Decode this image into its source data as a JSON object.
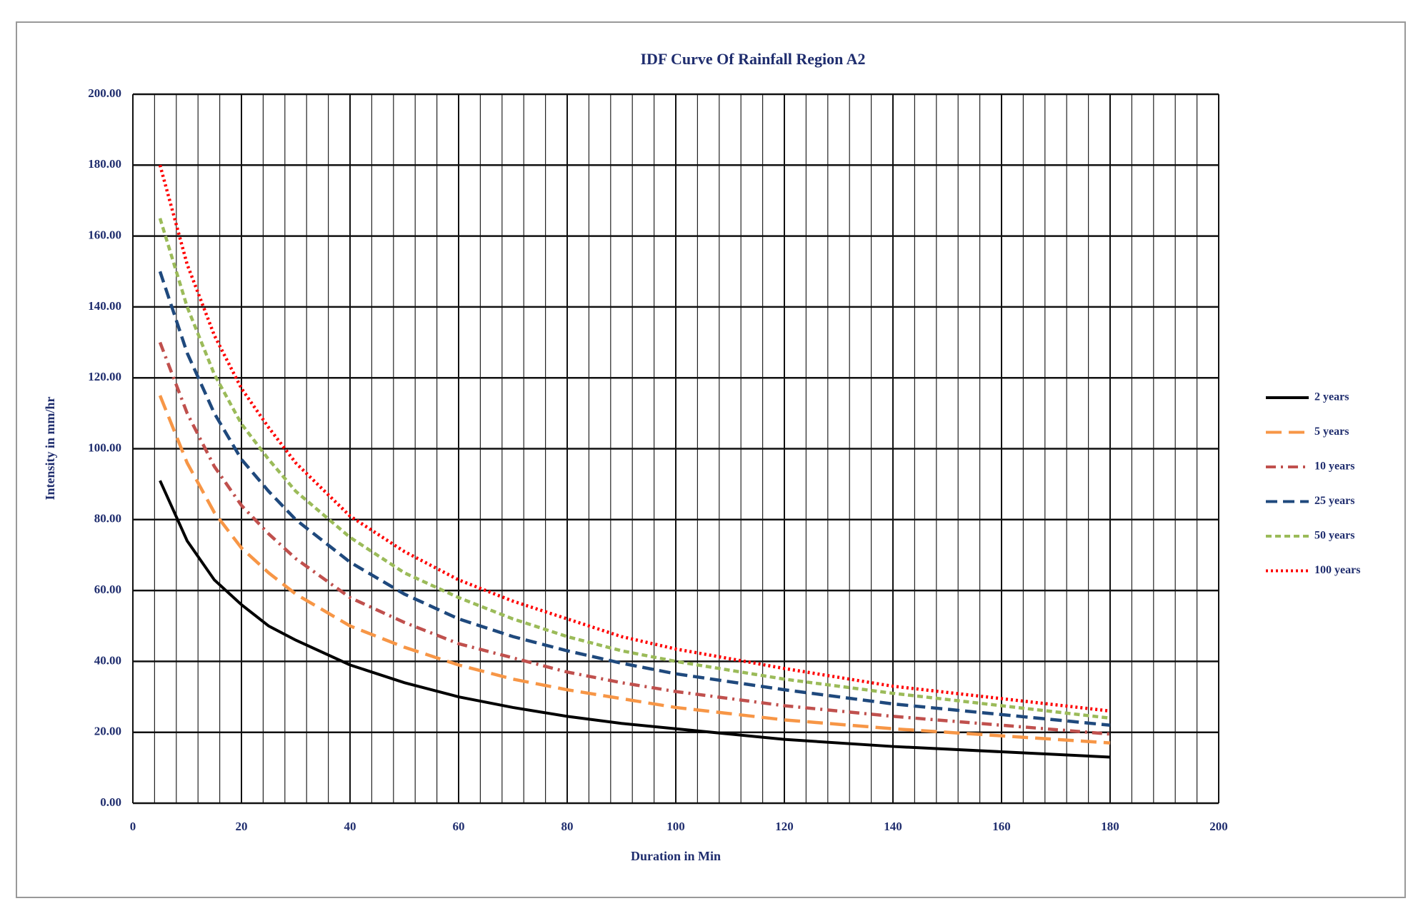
{
  "chart_data": {
    "type": "line",
    "title": "IDF Curve Of Rainfall Region A2",
    "x_label": "Duration in Min",
    "y_label": "Intensity in mm/hr",
    "x": [
      5,
      10,
      15,
      20,
      25,
      30,
      40,
      50,
      60,
      70,
      80,
      90,
      100,
      120,
      140,
      160,
      180
    ],
    "series": [
      {
        "name": "2 years",
        "color": "#000000",
        "dash": "solid",
        "values": [
          91,
          74,
          63,
          56,
          50,
          46,
          39,
          34,
          30,
          27,
          24.5,
          22.5,
          21,
          18,
          16,
          14.5,
          13
        ]
      },
      {
        "name": "5 years",
        "color": "#f79646",
        "dash": "longdash",
        "values": [
          115,
          96,
          82,
          72,
          65,
          59,
          50,
          44,
          39,
          35,
          32,
          29.5,
          27,
          23.5,
          21,
          19,
          17
        ]
      },
      {
        "name": "10 years",
        "color": "#c0504d",
        "dash": "dashdot",
        "values": [
          130,
          110,
          95,
          84,
          76,
          69,
          58,
          51,
          45,
          41,
          37,
          34,
          31.5,
          27.5,
          24.5,
          22,
          19.5
        ]
      },
      {
        "name": "25 years",
        "color": "#1f497d",
        "dash": "dash",
        "values": [
          150,
          127,
          110,
          97,
          88,
          80,
          68,
          59,
          52,
          47,
          43,
          39.5,
          36.5,
          32,
          28,
          25,
          22
        ]
      },
      {
        "name": "50 years",
        "color": "#9bbb59",
        "dash": "shortdash",
        "values": [
          165,
          140,
          121,
          107,
          97,
          88,
          75,
          65,
          58,
          52,
          47,
          43,
          40,
          35,
          31,
          27.5,
          24
        ]
      },
      {
        "name": "100 years",
        "color": "#ff0000",
        "dash": "dot",
        "values": [
          180,
          152,
          132,
          117,
          106,
          96,
          81,
          71,
          63,
          57,
          52,
          47,
          43.5,
          38,
          33,
          29.5,
          26
        ]
      }
    ],
    "xlim": [
      0,
      200
    ],
    "xticks": [
      0,
      20,
      40,
      60,
      80,
      100,
      120,
      140,
      160,
      180,
      200
    ],
    "ylim": [
      0,
      200
    ],
    "yticks": [
      {
        "value": 0,
        "label": "0.00"
      },
      {
        "value": 20,
        "label": "20.00"
      },
      {
        "value": 40,
        "label": "40.00"
      },
      {
        "value": 60,
        "label": "60.00"
      },
      {
        "value": 80,
        "label": "80.00"
      },
      {
        "value": 100,
        "label": "100.00"
      },
      {
        "value": 120,
        "label": "120.00"
      },
      {
        "value": 140,
        "label": "140.00"
      },
      {
        "value": 160,
        "label": "160.00"
      },
      {
        "value": 180,
        "label": "180.00"
      },
      {
        "value": 200,
        "label": "200.00"
      }
    ],
    "grid": true,
    "minor_grid_x": true,
    "legend": "right"
  }
}
